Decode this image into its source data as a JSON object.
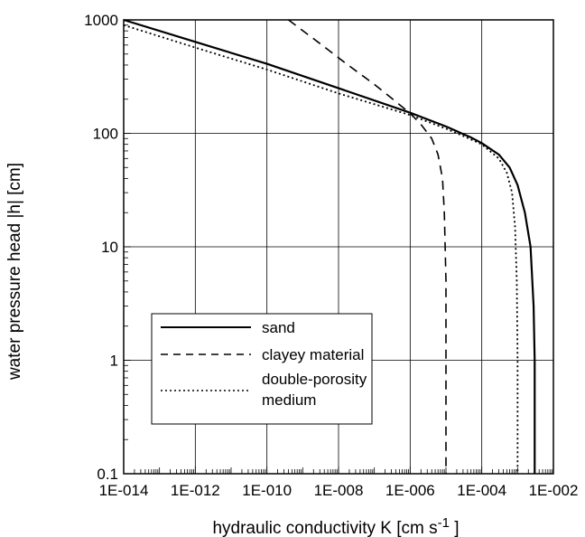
{
  "chart_data": {
    "type": "line",
    "xscale": "log",
    "yscale": "log",
    "xlim": [
      1e-14,
      0.01
    ],
    "ylim": [
      0.1,
      1000
    ],
    "grid": true,
    "xlabel": "hydraulic  conductivity K [cm s",
    "xlabel_sup": "-1",
    "xlabel_end": " ]",
    "ylabel": "water pressure head |h| [cm]",
    "xtick_labels": [
      "1E-014",
      "1E-012",
      "1E-010",
      "1E-008",
      "1E-006",
      "1E-004",
      "1E-002"
    ],
    "ytick_labels": [
      "0.1",
      "1",
      "10",
      "100",
      "1000"
    ],
    "legend_placement": "lower-left",
    "series": [
      {
        "name": "sand",
        "style": "solid",
        "points": [
          [
            1e-14,
            1000
          ],
          [
            1e-12,
            640
          ],
          [
            1e-10,
            410
          ],
          [
            1e-08,
            250
          ],
          [
            1e-06,
            152
          ],
          [
            1e-05,
            115
          ],
          [
            5e-05,
            92
          ],
          [
            0.0001,
            82
          ],
          [
            0.0003,
            65
          ],
          [
            0.0006,
            50
          ],
          [
            0.001,
            35
          ],
          [
            0.0016,
            20
          ],
          [
            0.0023,
            10
          ],
          [
            0.0028,
            3
          ],
          [
            0.003,
            1
          ],
          [
            0.003,
            0.1
          ]
        ]
      },
      {
        "name": "clayey material",
        "style": "dashed",
        "points": [
          [
            4e-10,
            1000
          ],
          [
            3e-09,
            620
          ],
          [
            1.5e-08,
            420
          ],
          [
            1e-07,
            270
          ],
          [
            4e-07,
            190
          ],
          [
            1e-06,
            150
          ],
          [
            2e-06,
            120
          ],
          [
            4e-06,
            90
          ],
          [
            6e-06,
            65
          ],
          [
            8e-06,
            40
          ],
          [
            9e-06,
            20
          ],
          [
            1e-05,
            5
          ],
          [
            1e-05,
            1
          ],
          [
            1e-05,
            0.1
          ]
        ]
      },
      {
        "name": "double-porosity medium",
        "style": "dotted",
        "points": [
          [
            1e-14,
            900
          ],
          [
            1e-12,
            570
          ],
          [
            1e-10,
            365
          ],
          [
            1e-08,
            225
          ],
          [
            1e-06,
            145
          ],
          [
            1e-05,
            110
          ],
          [
            3e-05,
            95
          ],
          [
            0.0001,
            80
          ],
          [
            0.0003,
            60
          ],
          [
            0.0005,
            45
          ],
          [
            0.0007,
            30
          ],
          [
            0.00085,
            15
          ],
          [
            0.00095,
            5
          ],
          [
            0.001,
            1
          ],
          [
            0.001,
            0.1
          ]
        ]
      }
    ],
    "legend_labels": {
      "sand": "sand",
      "clayey": "clayey material",
      "dp_line1": "double-porosity",
      "dp_line2": "medium"
    }
  }
}
